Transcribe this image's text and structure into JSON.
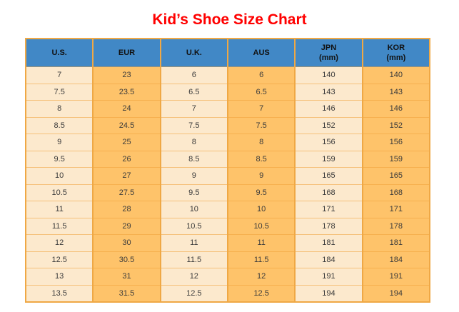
{
  "title": "Kid’s Shoe Size Chart",
  "colors": {
    "title_red": "#FF0000",
    "header_blue": "#4188C6",
    "cell_light": "#FCE9CD",
    "cell_dark": "#FEC36A",
    "border_orange": "#EFA845"
  },
  "chart_data": {
    "type": "table",
    "title": "Kid’s Shoe Size Chart",
    "layout": {
      "header_background": "#4188C6",
      "light_columns": [
        "U.S.",
        "U.K.",
        "JPN (mm)"
      ],
      "dark_columns": [
        "EUR",
        "AUS",
        "KOR (mm)"
      ]
    },
    "headers": [
      {
        "lines": [
          "U.S."
        ]
      },
      {
        "lines": [
          "EUR"
        ]
      },
      {
        "lines": [
          "U.K."
        ]
      },
      {
        "lines": [
          "AUS"
        ]
      },
      {
        "lines": [
          "JPN",
          "(mm)"
        ]
      },
      {
        "lines": [
          "KOR",
          "(mm)"
        ]
      }
    ],
    "rows": [
      [
        "7",
        "23",
        "6",
        "6",
        "140",
        "140"
      ],
      [
        "7.5",
        "23.5",
        "6.5",
        "6.5",
        "143",
        "143"
      ],
      [
        "8",
        "24",
        "7",
        "7",
        "146",
        "146"
      ],
      [
        "8.5",
        "24.5",
        "7.5",
        "7.5",
        "152",
        "152"
      ],
      [
        "9",
        "25",
        "8",
        "8",
        "156",
        "156"
      ],
      [
        "9.5",
        "26",
        "8.5",
        "8.5",
        "159",
        "159"
      ],
      [
        "10",
        "27",
        "9",
        "9",
        "165",
        "165"
      ],
      [
        "10.5",
        "27.5",
        "9.5",
        "9.5",
        "168",
        "168"
      ],
      [
        "11",
        "28",
        "10",
        "10",
        "171",
        "171"
      ],
      [
        "11.5",
        "29",
        "10.5",
        "10.5",
        "178",
        "178"
      ],
      [
        "12",
        "30",
        "11",
        "11",
        "181",
        "181"
      ],
      [
        "12.5",
        "30.5",
        "11.5",
        "11.5",
        "184",
        "184"
      ],
      [
        "13",
        "31",
        "12",
        "12",
        "191",
        "191"
      ],
      [
        "13.5",
        "31.5",
        "12.5",
        "12.5",
        "194",
        "194"
      ]
    ]
  }
}
